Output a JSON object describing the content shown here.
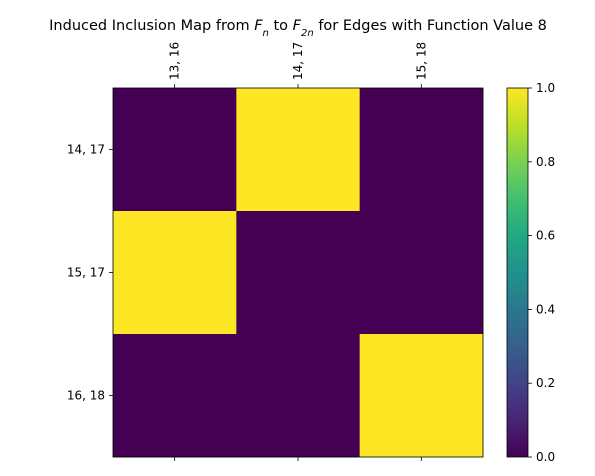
{
  "chart_data": {
    "type": "heatmap",
    "title_parts": [
      {
        "t": "Induced Inclusion Map from ",
        "k": "n"
      },
      {
        "t": "F",
        "k": "i"
      },
      {
        "t": "n",
        "k": "sub"
      },
      {
        "t": " to ",
        "k": "n"
      },
      {
        "t": "F",
        "k": "i"
      },
      {
        "t": "2n",
        "k": "sub"
      },
      {
        "t": " for Edges with Function Value 8",
        "k": "n"
      }
    ],
    "columns": [
      "13, 16",
      "14, 17",
      "15, 18"
    ],
    "rows": [
      "14, 17",
      "15, 17",
      "16, 18"
    ],
    "values": [
      [
        0,
        1,
        0
      ],
      [
        1,
        0,
        0
      ],
      [
        0,
        0,
        1
      ]
    ],
    "colormap": "viridis",
    "vmin": 0,
    "vmax": 1,
    "colorbar_ticks": [
      "0.0",
      "0.2",
      "0.4",
      "0.6",
      "0.8",
      "1.0"
    ],
    "colors": {
      "low": "#440154",
      "high": "#fde725"
    }
  }
}
